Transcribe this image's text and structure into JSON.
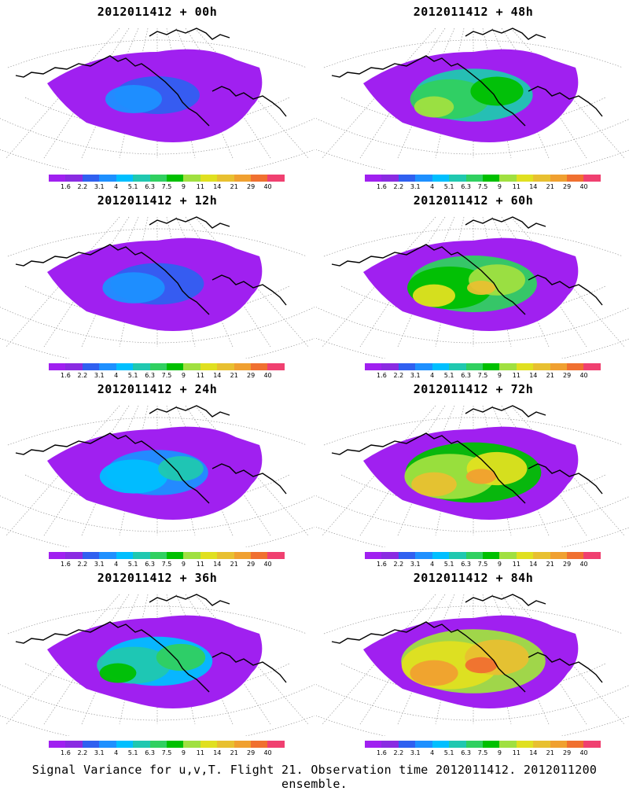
{
  "panels": [
    {
      "title": "2012011412 + 00h",
      "intensity": 0
    },
    {
      "title": "2012011412 + 48h",
      "intensity": 4
    },
    {
      "title": "2012011412 + 12h",
      "intensity": 1
    },
    {
      "title": "2012011412 + 60h",
      "intensity": 5
    },
    {
      "title": "2012011412 + 24h",
      "intensity": 2
    },
    {
      "title": "2012011412 + 72h",
      "intensity": 6
    },
    {
      "title": "2012011412 + 36h",
      "intensity": 3
    },
    {
      "title": "2012011412 + 84h",
      "intensity": 7
    }
  ],
  "colorbar": {
    "labels": [
      "1.6",
      "2.2",
      "3.1",
      "4",
      "5.1",
      "6.3",
      "7.5",
      "9",
      "11",
      "14",
      "21",
      "29",
      "40"
    ],
    "colors": [
      "#a020f0",
      "#8a2be2",
      "#3060f0",
      "#1e90ff",
      "#00bfff",
      "#20c8b0",
      "#30d060",
      "#00c000",
      "#a0e040",
      "#e0e020",
      "#e8c030",
      "#f0a030",
      "#f07030",
      "#f04070"
    ]
  },
  "footer": "Signal Variance for u,v,T. Flight 21. Observation time 2012011412. 2012011200 ensemble."
}
